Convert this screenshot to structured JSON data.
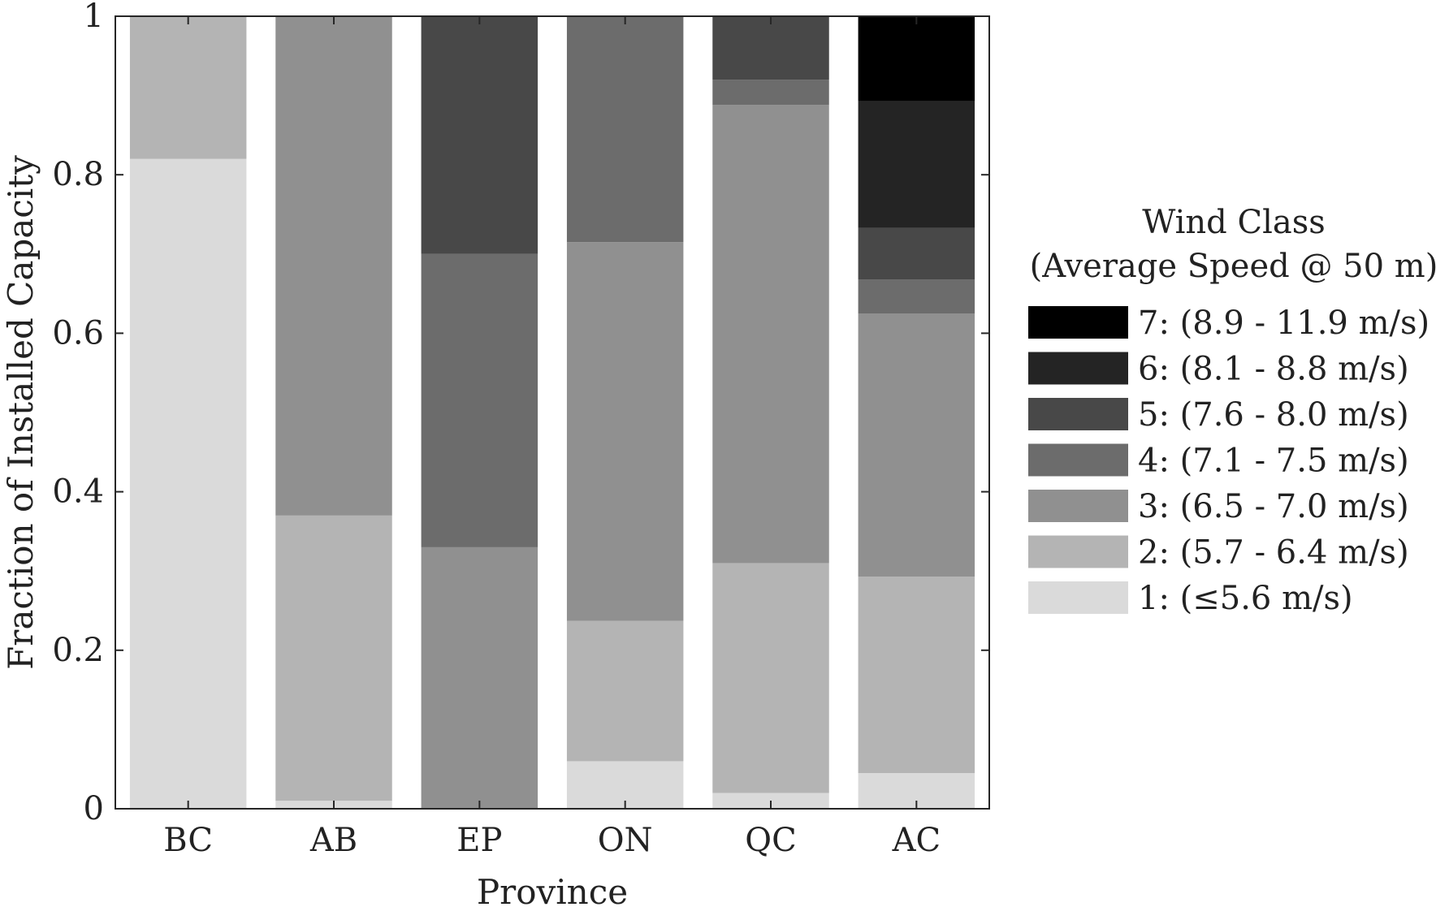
{
  "chart_data": {
    "type": "bar",
    "stacked": true,
    "categories": [
      "BC",
      "AB",
      "EP",
      "ON",
      "QC",
      "AC"
    ],
    "xlabel": "Province",
    "ylabel": "Fraction of Installed Capacity",
    "ylim": [
      0,
      1
    ],
    "yticks": [
      0,
      0.2,
      0.4,
      0.6,
      0.8,
      1
    ],
    "ytick_labels": [
      "0",
      "0.2",
      "0.4",
      "0.6",
      "0.8",
      "1"
    ],
    "grid": false,
    "legend_position": "right",
    "legend_title": [
      "Wind Class",
      "(Average Speed @ 50 m)"
    ],
    "series": [
      {
        "name": "1: (≤5.6 m/s)",
        "color": "#dadada",
        "values": [
          0.82,
          0.01,
          0.0,
          0.06,
          0.02,
          0.045
        ]
      },
      {
        "name": "2: (5.7 - 6.4 m/s)",
        "color": "#b4b4b4",
        "values": [
          0.18,
          0.36,
          0.0,
          0.177,
          0.29,
          0.248
        ]
      },
      {
        "name": "3: (6.5 - 7.0 m/s)",
        "color": "#909090",
        "values": [
          0.0,
          0.63,
          0.33,
          0.478,
          0.578,
          0.332
        ]
      },
      {
        "name": "4: (7.1 - 7.5 m/s)",
        "color": "#6c6c6c",
        "values": [
          0.0,
          0.0,
          0.37,
          0.285,
          0.032,
          0.043
        ]
      },
      {
        "name": "5: (7.6 - 8.0 m/s)",
        "color": "#484848",
        "values": [
          0.0,
          0.0,
          0.3,
          0.0,
          0.08,
          0.065
        ]
      },
      {
        "name": "6: (8.1 - 8.8 m/s)",
        "color": "#242424",
        "values": [
          0.0,
          0.0,
          0.0,
          0.0,
          0.0,
          0.16
        ]
      },
      {
        "name": "7: (8.9 - 11.9 m/s)",
        "color": "#000000",
        "values": [
          0.0,
          0.0,
          0.0,
          0.0,
          0.0,
          0.107
        ]
      }
    ]
  }
}
